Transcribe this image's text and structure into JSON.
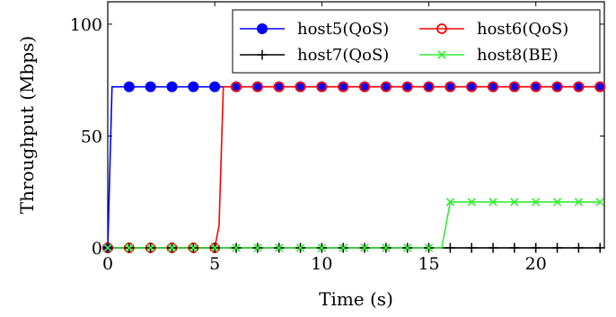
{
  "chart_data": {
    "type": "line",
    "xlabel": "Time (s)",
    "ylabel": "Throughput (Mbps)",
    "xlim": [
      0,
      23.2
    ],
    "ylim": [
      0,
      110
    ],
    "xticks": [
      0,
      5,
      10,
      15,
      20
    ],
    "yticks": [
      0,
      50,
      100
    ],
    "legend_placement": "top-right",
    "grid": false,
    "series": [
      {
        "name": "host5(QoS)",
        "color": "#0000ff",
        "marker": "filled-circle",
        "line_x": [
          0,
          0.2,
          23
        ],
        "line_y": [
          0,
          72,
          72
        ],
        "marker_x": [
          0,
          1,
          2,
          3,
          4,
          5,
          6,
          7,
          8,
          9,
          10,
          11,
          12,
          13,
          14,
          15,
          16,
          17,
          18,
          19,
          20,
          21,
          22,
          23
        ],
        "marker_y": [
          0,
          72,
          72,
          72,
          72,
          72,
          72,
          72,
          72,
          72,
          72,
          72,
          72,
          72,
          72,
          72,
          72,
          72,
          72,
          72,
          72,
          72,
          72,
          72
        ]
      },
      {
        "name": "host6(QoS)",
        "color": "#ff0000",
        "marker": "open-circle",
        "line_x": [
          0,
          5,
          5.2,
          5.4,
          23
        ],
        "line_y": [
          0,
          0,
          10,
          72,
          72
        ],
        "marker_x": [
          0,
          1,
          2,
          3,
          4,
          5,
          6,
          7,
          8,
          9,
          10,
          11,
          12,
          13,
          14,
          15,
          16,
          17,
          18,
          19,
          20,
          21,
          22,
          23
        ],
        "marker_y": [
          0,
          0,
          0,
          0,
          0,
          0,
          72,
          72,
          72,
          72,
          72,
          72,
          72,
          72,
          72,
          72,
          72,
          72,
          72,
          72,
          72,
          72,
          72,
          72
        ]
      },
      {
        "name": "host7(QoS)",
        "color": "#000000",
        "marker": "plus",
        "line_x": [
          0,
          23
        ],
        "line_y": [
          0,
          0
        ],
        "marker_x": [
          0,
          1,
          2,
          3,
          4,
          5,
          6,
          7,
          8,
          9,
          10,
          11,
          12,
          13,
          14,
          15,
          16,
          17,
          18,
          19,
          20,
          21,
          22,
          23
        ],
        "marker_y": [
          0,
          0,
          0,
          0,
          0,
          0,
          0,
          0,
          0,
          0,
          0,
          0,
          0,
          0,
          0,
          0,
          0,
          0,
          0,
          0,
          0,
          0,
          0,
          0
        ]
      },
      {
        "name": "host8(BE)",
        "color": "#33ee33",
        "marker": "cross",
        "line_x": [
          0,
          15.6,
          15.8,
          16,
          23
        ],
        "line_y": [
          0,
          0,
          10,
          20.5,
          20.5
        ],
        "marker_x": [
          0,
          1,
          2,
          3,
          4,
          5,
          6,
          7,
          8,
          9,
          10,
          11,
          12,
          13,
          14,
          15,
          16,
          17,
          18,
          19,
          20,
          21,
          22,
          23
        ],
        "marker_y": [
          0,
          0,
          0,
          0,
          0,
          0,
          0,
          0,
          0,
          0,
          0,
          0,
          0,
          0,
          0,
          0,
          20.5,
          20.5,
          20.5,
          20.5,
          20.5,
          20.5,
          20.5,
          20.5
        ]
      }
    ]
  }
}
